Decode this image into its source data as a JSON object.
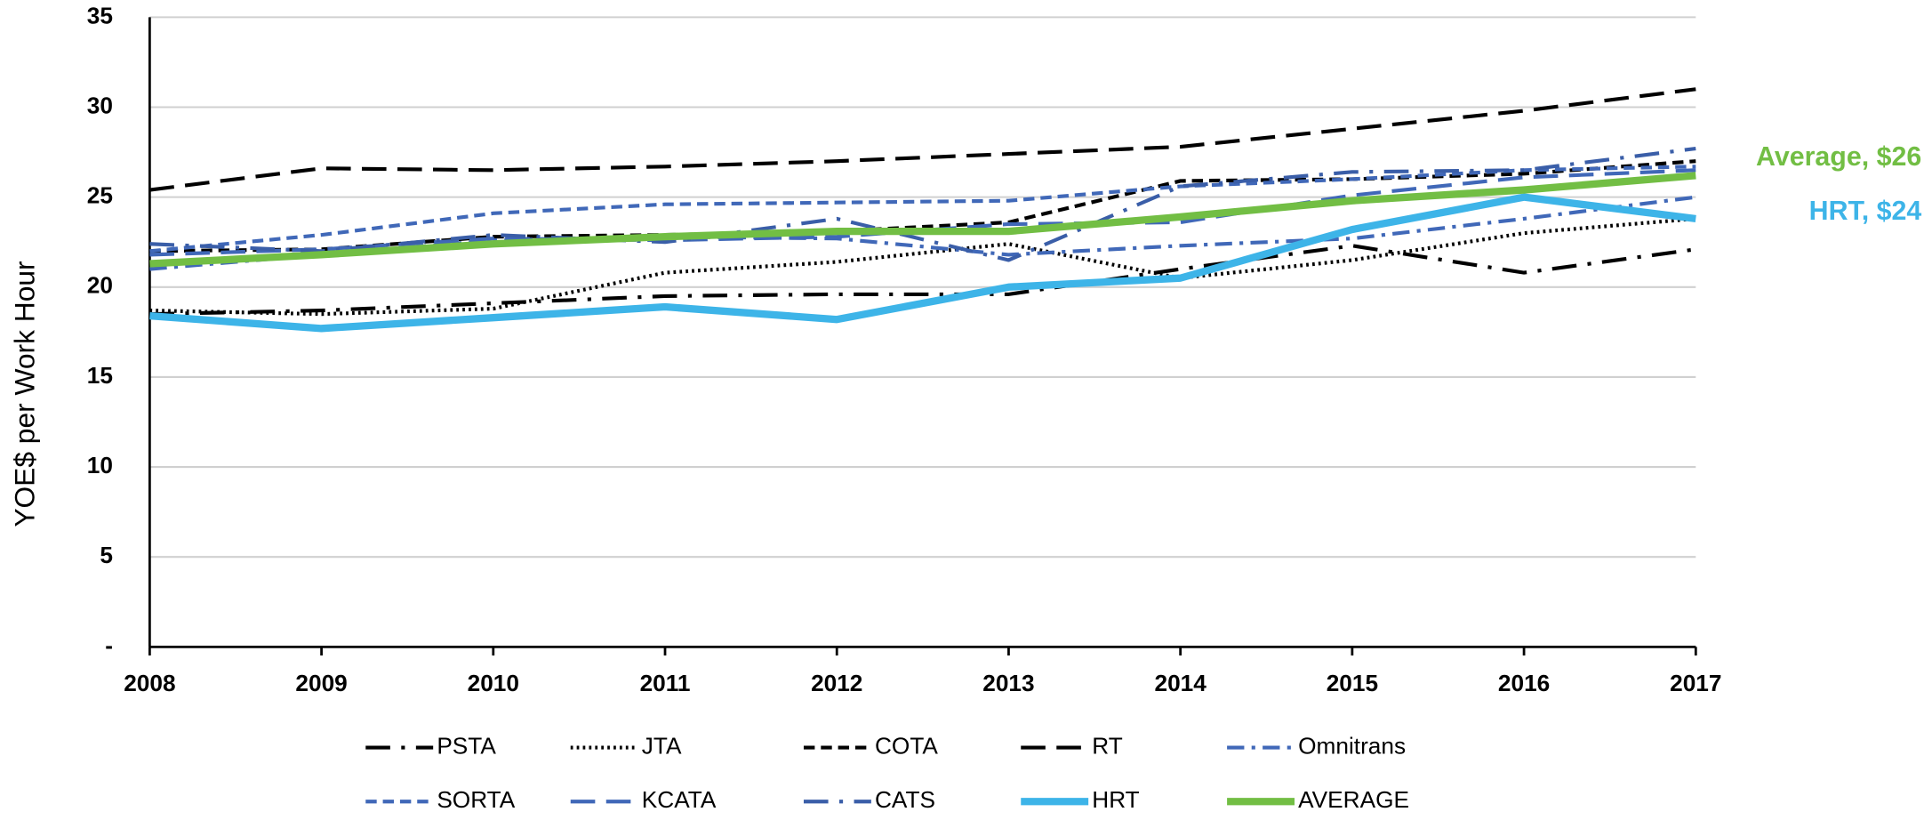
{
  "chart_data": {
    "type": "line",
    "y_label": "YOE$ per Work Hour",
    "x": [
      2008,
      2009,
      2010,
      2011,
      2012,
      2013,
      2014,
      2015,
      2016,
      2017
    ],
    "xlim": [
      2008,
      2017
    ],
    "xticks": [
      2008,
      2009,
      2010,
      2011,
      2012,
      2013,
      2014,
      2015,
      2016,
      2017
    ],
    "ylim": [
      0,
      35
    ],
    "yticks": [
      {
        "value": 0,
        "label": "-"
      },
      5,
      10,
      15,
      20,
      25,
      30,
      35
    ],
    "grid": true,
    "legend": "bottom",
    "series": [
      {
        "name": "PSTA",
        "color": "#000000",
        "style": "long-dash-dot",
        "values": [
          18.5,
          18.7,
          19.1,
          19.5,
          19.6,
          19.6,
          21.0,
          22.3,
          20.8,
          22.1
        ]
      },
      {
        "name": "JTA",
        "color": "#000000",
        "style": "dotted",
        "values": [
          18.7,
          18.5,
          18.8,
          20.8,
          21.4,
          22.4,
          20.5,
          21.5,
          23.0,
          23.8
        ]
      },
      {
        "name": "COTA",
        "color": "#000000",
        "style": "dashed",
        "values": [
          22.0,
          22.1,
          22.8,
          22.9,
          23.1,
          23.6,
          25.9,
          26.0,
          26.3,
          27.0
        ]
      },
      {
        "name": "RT",
        "color": "#000000",
        "style": "long-dash",
        "values": [
          25.4,
          26.6,
          26.5,
          26.7,
          27.0,
          27.4,
          27.8,
          28.8,
          29.8,
          31.0
        ]
      },
      {
        "name": "Omnitrans",
        "color": "#4068b8",
        "style": "dash-dot",
        "values": [
          21.0,
          21.8,
          22.6,
          22.8,
          22.7,
          21.8,
          22.3,
          22.7,
          23.8,
          25.0
        ]
      },
      {
        "name": "SORTA",
        "color": "#4068b8",
        "style": "dashed",
        "values": [
          22.0,
          22.9,
          24.1,
          24.6,
          24.7,
          24.8,
          25.6,
          26.0,
          26.5,
          26.7
        ]
      },
      {
        "name": "KCATA",
        "color": "#4068b8",
        "style": "long-dash",
        "values": [
          21.8,
          22.1,
          22.7,
          22.6,
          22.8,
          23.5,
          23.6,
          25.1,
          26.1,
          26.5
        ]
      },
      {
        "name": "CATS",
        "color": "#3a5ea8",
        "style": "long-dash-dot",
        "values": [
          22.4,
          22.0,
          22.9,
          22.5,
          23.8,
          21.5,
          25.6,
          26.4,
          26.5,
          27.7
        ]
      },
      {
        "name": "HRT",
        "color": "#3db4e8",
        "style": "solid",
        "values": [
          18.4,
          17.7,
          18.3,
          18.9,
          18.2,
          20.0,
          20.5,
          23.2,
          25.0,
          23.8
        ]
      },
      {
        "name": "AVERAGE",
        "color": "#72be44",
        "style": "solid",
        "values": [
          21.3,
          21.8,
          22.4,
          22.8,
          23.1,
          23.1,
          23.9,
          24.8,
          25.4,
          26.2
        ]
      }
    ],
    "annotations": [
      {
        "text": "Average, $26",
        "color": "#72be44"
      },
      {
        "text": "HRT, $24",
        "color": "#3db4e8"
      }
    ]
  }
}
